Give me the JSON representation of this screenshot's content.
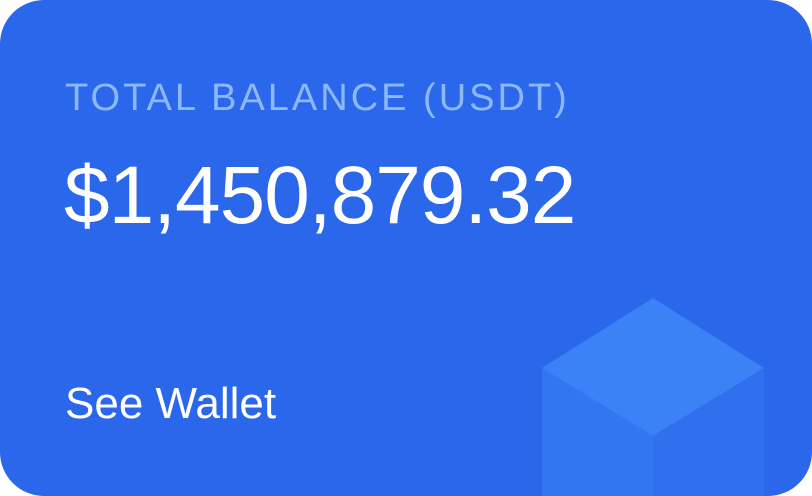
{
  "balance_card": {
    "label": "TOTAL BALANCE (USDT)",
    "amount": "$1,450,879.32",
    "wallet_link": "See Wallet"
  },
  "decoration": {
    "icon": "cube-icon"
  },
  "colors": {
    "card_background": "#2b67ea",
    "label_text": "#8cb8ff",
    "primary_text": "#ffffff",
    "cube_light": "#3a84f5",
    "cube_mid": "#3479f1",
    "cube_dark": "#2f70ee"
  }
}
